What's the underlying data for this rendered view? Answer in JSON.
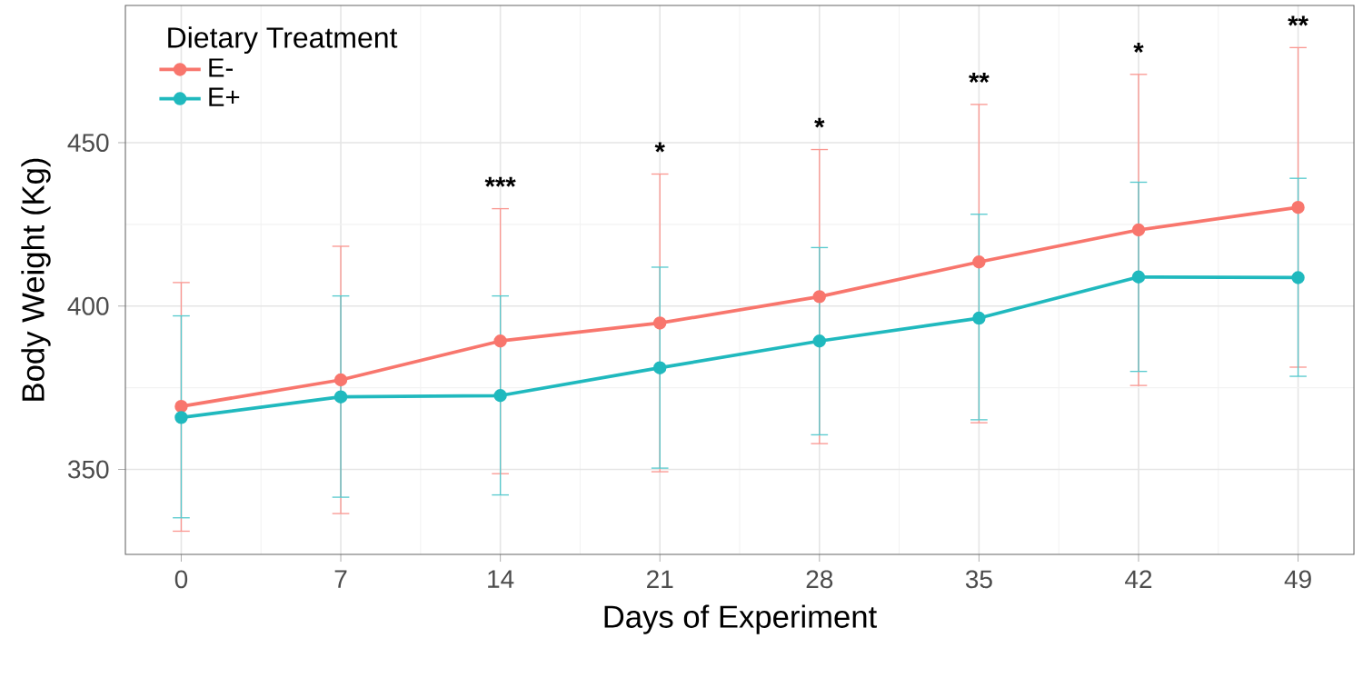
{
  "chart_data": {
    "type": "line",
    "xlabel": "Days of Experiment",
    "ylabel": "Body Weight (Kg)",
    "legend_title": "Dietary Treatment",
    "x": [
      0,
      7,
      14,
      21,
      28,
      35,
      42,
      49
    ],
    "series": [
      {
        "name": "E-",
        "color": "#f8766d",
        "values": [
          369.3,
          377.4,
          389.3,
          394.8,
          402.9,
          413.5,
          423.3,
          430.2
        ],
        "errors": [
          [
            331.1,
            407.2
          ],
          [
            336.5,
            418.3
          ],
          [
            348.7,
            429.8
          ],
          [
            349.3,
            440.4
          ],
          [
            357.9,
            447.9
          ],
          [
            364.3,
            461.7
          ],
          [
            375.7,
            470.9
          ],
          [
            381.3,
            479.1
          ]
        ]
      },
      {
        "name": "E+",
        "color": "#20b9be",
        "values": [
          365.9,
          372.2,
          372.6,
          381.1,
          389.3,
          396.3,
          408.9,
          408.7
        ],
        "errors": [
          [
            335.2,
            397.0
          ],
          [
            341.5,
            403.1
          ],
          [
            342.2,
            403.1
          ],
          [
            350.4,
            411.9
          ],
          [
            360.6,
            417.9
          ],
          [
            365.2,
            428.1
          ],
          [
            380.0,
            437.9
          ],
          [
            378.5,
            439.1
          ]
        ]
      }
    ],
    "xlim": [
      -2.45,
      51.45
    ],
    "ylim": [
      324,
      492
    ],
    "xticks": [
      0,
      7,
      14,
      21,
      28,
      35,
      42,
      49
    ],
    "yticks": [
      350,
      400,
      450
    ],
    "annotations": [
      {
        "text": "***",
        "x": 14,
        "y": 429.8
      },
      {
        "text": "*",
        "x": 21,
        "y": 440.4
      },
      {
        "text": "*",
        "x": 28,
        "y": 447.9
      },
      {
        "text": "**",
        "x": 35,
        "y": 461.7
      },
      {
        "text": "*",
        "x": 42,
        "y": 470.9
      },
      {
        "text": "**",
        "x": 49,
        "y": 479.1
      }
    ],
    "grid": true,
    "legend": "top left",
    "marker": "circle",
    "line_style": "solid"
  }
}
